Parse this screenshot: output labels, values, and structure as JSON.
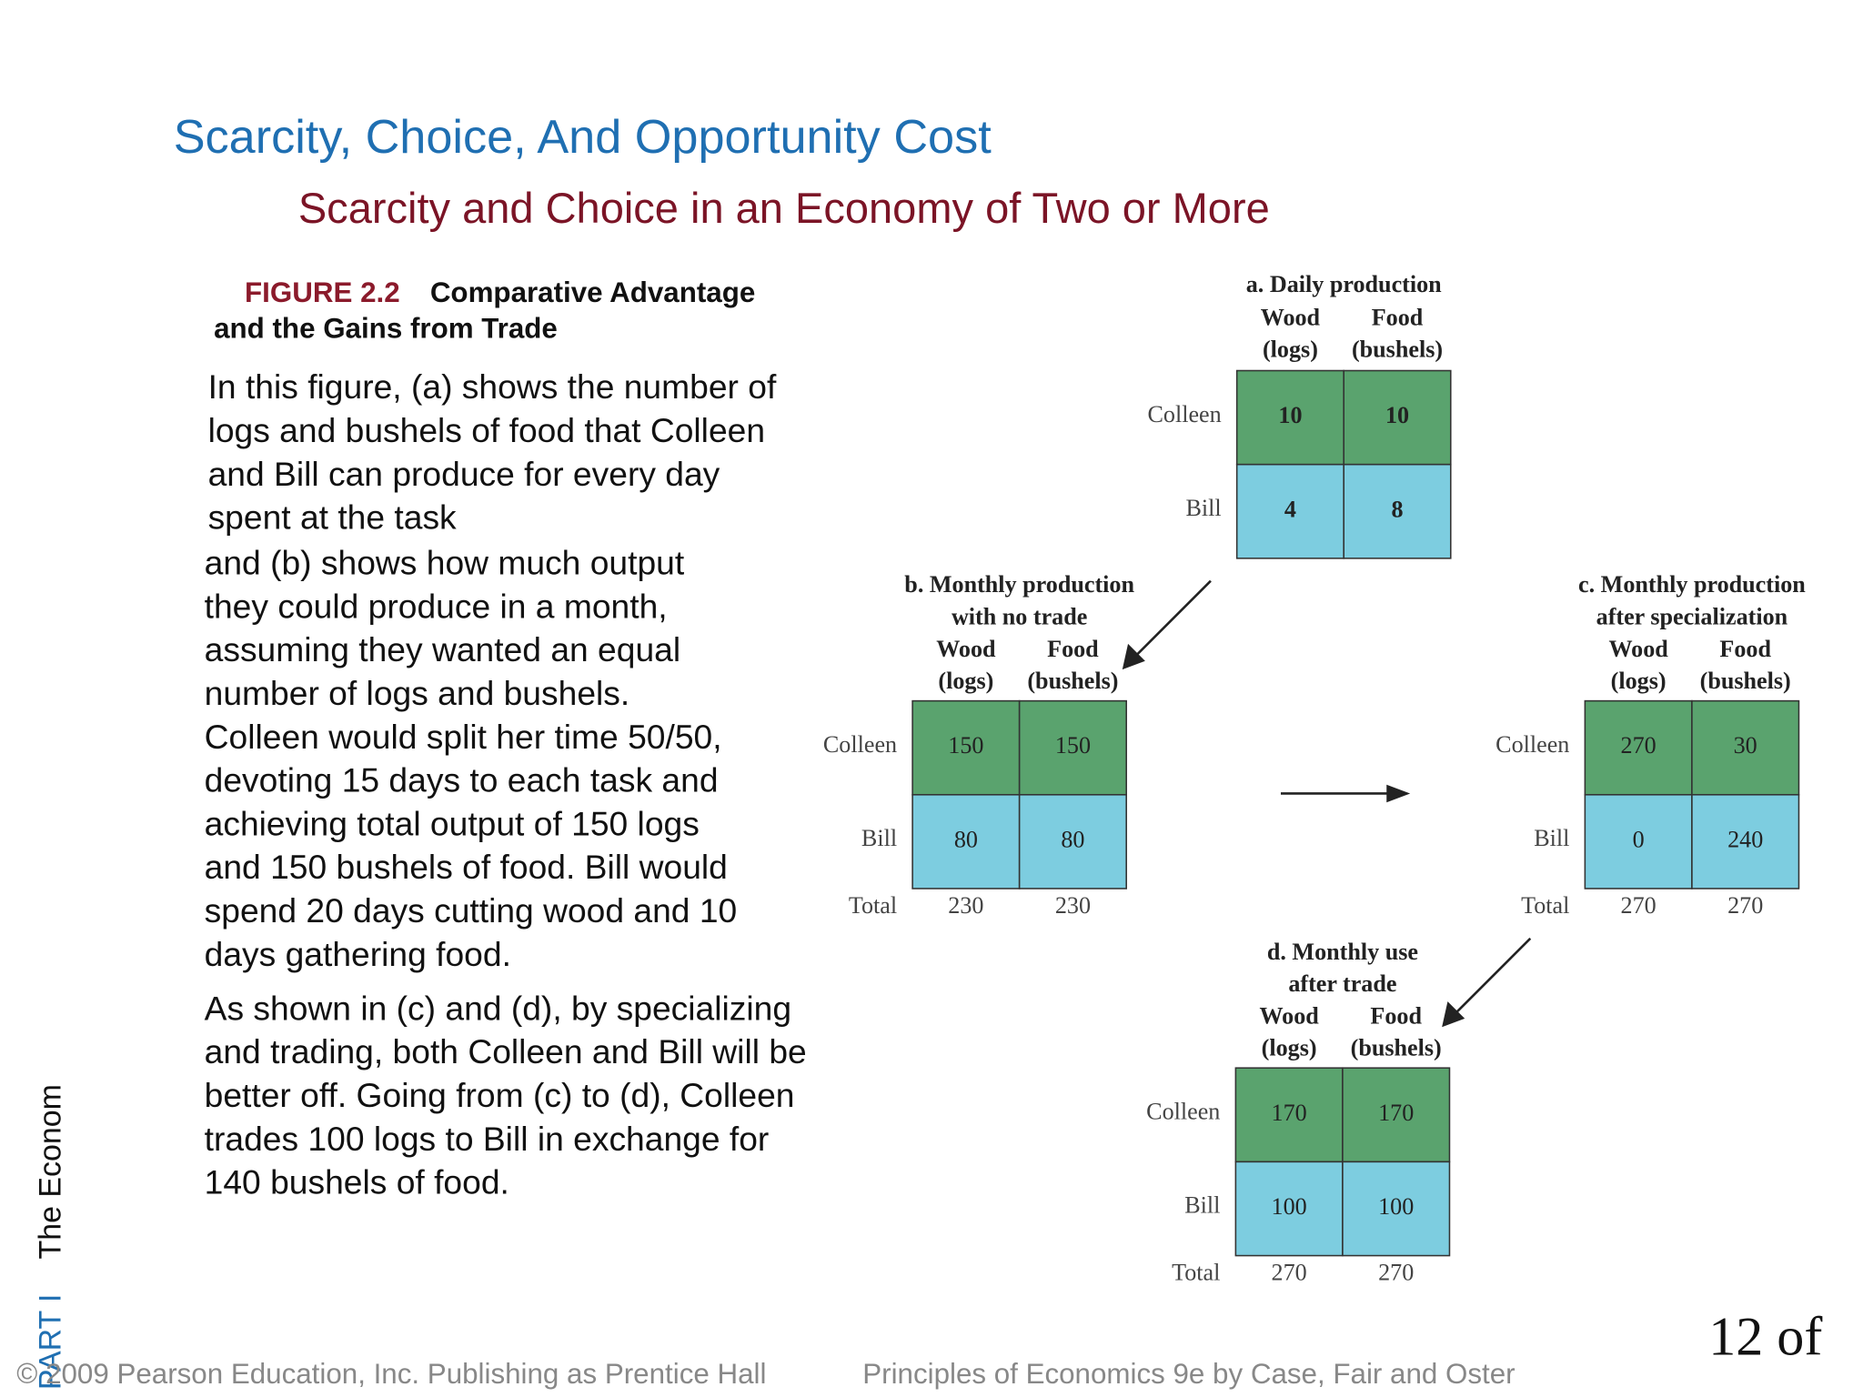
{
  "title": "Scarcity, Choice, And Opportunity Cost",
  "subtitle": "Scarcity and Choice in an Economy of Two or More",
  "figure": {
    "label": "FIGURE 2.2",
    "caption_lines": [
      "Comparative Advantage",
      "and the Gains from Trade"
    ]
  },
  "paragraphs": [
    [
      "In this figure, (a) shows the number of",
      "logs and bushels of food that Colleen",
      "and Bill can produce for every day",
      "spent at the task"
    ],
    [
      "and (b) shows how much output",
      "they could produce in a month,",
      "assuming they wanted an equal",
      "number of logs and bushels.",
      "Colleen would split her time 50/50,",
      "devoting 15 days to each task and",
      "achieving total output of 150 logs",
      "and 150 bushels of food. Bill would",
      "spend 20 days cutting wood and 10",
      "days gathering food."
    ],
    [
      "As shown in (c) and (d), by specializing",
      "and trading, both Colleen and Bill will be",
      "better off. Going from (c) to (d), Colleen",
      "trades 100 logs to Bill in exchange for",
      "140 bushels of food."
    ]
  ],
  "tables": [
    {
      "title_lines": [
        "a. Daily production"
      ],
      "columns": [
        [
          "Wood",
          "(logs)"
        ],
        [
          "Food",
          "(bushels)"
        ]
      ],
      "rows": [
        {
          "name": "Colleen",
          "values": [
            10,
            10
          ]
        },
        {
          "name": "Bill",
          "values": [
            4,
            8
          ]
        }
      ]
    },
    {
      "title_lines": [
        "b. Monthly production",
        "with no trade"
      ],
      "columns": [
        [
          "Wood",
          "(logs)"
        ],
        [
          "Food",
          "(bushels)"
        ]
      ],
      "rows": [
        {
          "name": "Colleen",
          "values": [
            150,
            150
          ]
        },
        {
          "name": "Bill",
          "values": [
            80,
            80
          ]
        }
      ],
      "total_label": "Total",
      "totals": [
        230,
        230
      ]
    },
    {
      "title_lines": [
        "c. Monthly production",
        "after specialization"
      ],
      "columns": [
        [
          "Wood",
          "(logs)"
        ],
        [
          "Food",
          "(bushels)"
        ]
      ],
      "rows": [
        {
          "name": "Colleen",
          "values": [
            270,
            30
          ]
        },
        {
          "name": "Bill",
          "values": [
            0,
            240
          ]
        }
      ],
      "total_label": "Total",
      "totals": [
        270,
        270
      ]
    },
    {
      "title_lines": [
        "d. Monthly use",
        "after trade"
      ],
      "columns": [
        [
          "Wood",
          "(logs)"
        ],
        [
          "Food",
          "(bushels)"
        ]
      ],
      "rows": [
        {
          "name": "Colleen",
          "values": [
            170,
            170
          ]
        },
        {
          "name": "Bill",
          "values": [
            100,
            100
          ]
        }
      ],
      "total_label": "Total",
      "totals": [
        270,
        270
      ]
    }
  ],
  "side_text": {
    "part": "PART I",
    "title": "The Econom"
  },
  "footer": "© 2009 Pearson Education, Inc. Publishing as Prentice Hall",
  "book": "Principles of Economics 9e by Case, Fair and Oster",
  "page_number": "12 of"
}
